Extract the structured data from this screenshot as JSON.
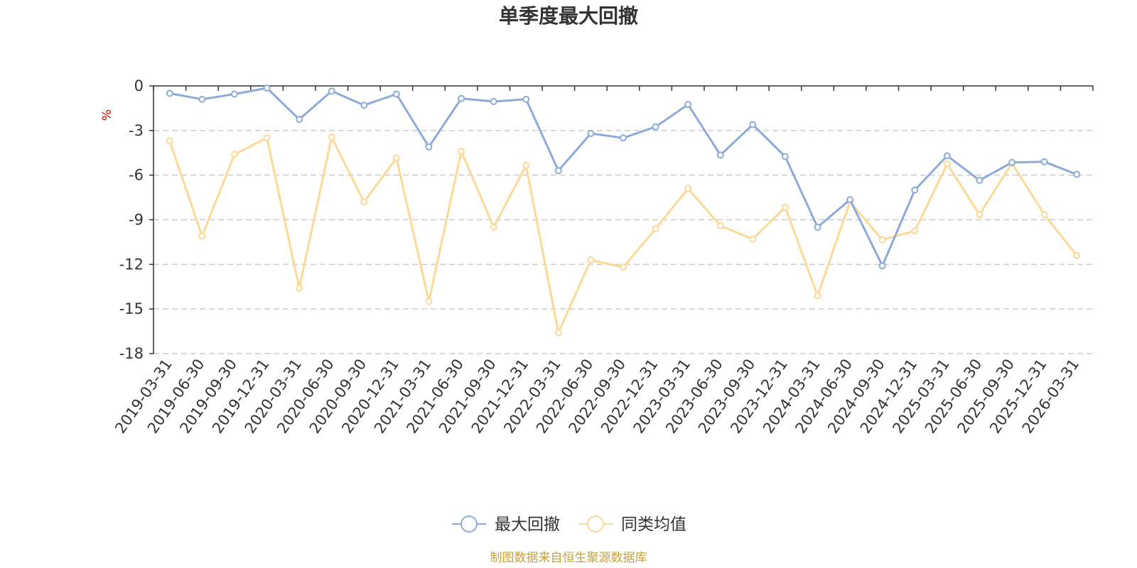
{
  "chart_data": {
    "type": "line",
    "title": "单季度最大回撤",
    "xlabel": "",
    "ylabel": "%",
    "ylim": [
      -18,
      0
    ],
    "yticks": [
      0,
      -3,
      -6,
      -9,
      -12,
      -15,
      -18
    ],
    "grid": "horizontal-dashed",
    "legend_position": "bottom-center",
    "categories": [
      "2019-03-31",
      "2019-06-30",
      "2019-09-30",
      "2019-12-31",
      "2020-03-31",
      "2020-06-30",
      "2020-09-30",
      "2020-12-31",
      "2021-03-31",
      "2021-06-30",
      "2021-09-30",
      "2021-12-31",
      "2022-03-31",
      "2022-06-30",
      "2022-09-30",
      "2022-12-31",
      "2023-03-31",
      "2023-06-30",
      "2023-09-30",
      "2023-12-31",
      "2024-03-31",
      "2024-06-30",
      "2024-09-30",
      "2024-12-31",
      "2025-03-31",
      "2025-06-30",
      "2025-09-30",
      "2025-12-31",
      "2026-03-31"
    ],
    "series": [
      {
        "name": "最大回撤",
        "color": "#8eaadb",
        "values": [
          -0.5,
          -0.9,
          -0.55,
          -0.15,
          -2.25,
          -0.35,
          -1.3,
          -0.55,
          -4.1,
          -0.85,
          -1.05,
          -0.9,
          -5.7,
          -3.2,
          -3.5,
          -2.75,
          -1.25,
          -4.65,
          -2.6,
          -4.75,
          -9.5,
          -7.65,
          -12.1,
          -7.0,
          -4.7,
          -6.35,
          -5.15,
          -5.1,
          -5.95
        ]
      },
      {
        "name": "同类均值",
        "color": "#fcd997",
        "values": [
          -3.7,
          -10.1,
          -4.6,
          -3.5,
          -13.6,
          -3.45,
          -7.8,
          -4.85,
          -14.5,
          -4.4,
          -9.5,
          -5.35,
          -16.6,
          -11.7,
          -12.2,
          -9.6,
          -6.9,
          -9.4,
          -10.3,
          -8.15,
          -14.1,
          -7.8,
          -10.35,
          -9.75,
          -5.25,
          -8.65,
          -5.2,
          -8.65,
          -11.4
        ]
      }
    ],
    "source_note": "制图数据来自恒生聚源数据库"
  }
}
